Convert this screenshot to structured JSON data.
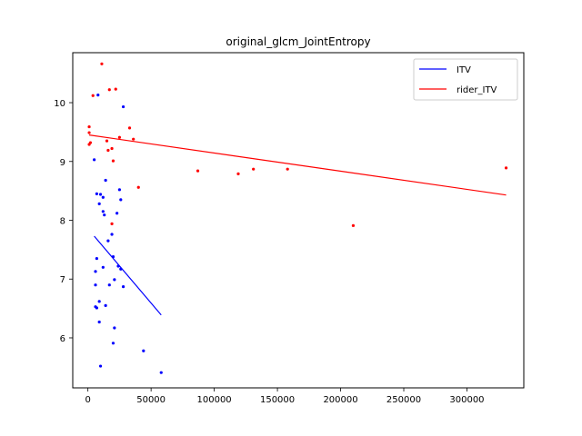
{
  "chart_data": {
    "type": "scatter",
    "title": "original_glcm_JointEntropy",
    "xlabel": "",
    "ylabel": "",
    "xlim": [
      -12000,
      345000
    ],
    "ylim": [
      5.15,
      10.85
    ],
    "xticks": [
      0,
      50000,
      100000,
      150000,
      200000,
      250000,
      300000
    ],
    "xtick_labels": [
      "0",
      "50000",
      "100000",
      "150000",
      "200000",
      "250000",
      "300000"
    ],
    "yticks": [
      6,
      7,
      8,
      9,
      10
    ],
    "ytick_labels": [
      "6",
      "7",
      "8",
      "9",
      "10"
    ],
    "grid": false,
    "legend": "top-right",
    "series": [
      {
        "name": "ITV",
        "color": "#0000ff",
        "points": [
          [
            8000,
            10.13
          ],
          [
            28000,
            9.93
          ],
          [
            5000,
            9.03
          ],
          [
            14000,
            8.68
          ],
          [
            7000,
            8.45
          ],
          [
            10000,
            8.44
          ],
          [
            12000,
            8.39
          ],
          [
            25000,
            8.52
          ],
          [
            26000,
            8.35
          ],
          [
            9000,
            8.28
          ],
          [
            12000,
            8.15
          ],
          [
            13000,
            8.09
          ],
          [
            23000,
            8.12
          ],
          [
            19000,
            7.76
          ],
          [
            16000,
            7.65
          ],
          [
            7000,
            7.35
          ],
          [
            20000,
            7.38
          ],
          [
            24000,
            7.22
          ],
          [
            12000,
            7.2
          ],
          [
            6000,
            7.13
          ],
          [
            26000,
            7.17
          ],
          [
            21000,
            6.99
          ],
          [
            6000,
            6.9
          ],
          [
            17000,
            6.9
          ],
          [
            28000,
            6.87
          ],
          [
            9000,
            6.62
          ],
          [
            6000,
            6.53
          ],
          [
            7000,
            6.51
          ],
          [
            14000,
            6.55
          ],
          [
            9000,
            6.27
          ],
          [
            21000,
            6.17
          ],
          [
            20000,
            5.91
          ],
          [
            44000,
            5.78
          ],
          [
            10000,
            5.52
          ],
          [
            58000,
            5.41
          ]
        ],
        "trend": [
          [
            5000,
            7.73
          ],
          [
            58000,
            6.39
          ]
        ]
      },
      {
        "name": "rider_ITV",
        "color": "#ff0000",
        "points": [
          [
            11000,
            10.66
          ],
          [
            17000,
            10.22
          ],
          [
            22000,
            10.23
          ],
          [
            4000,
            10.12
          ],
          [
            1000,
            9.59
          ],
          [
            1000,
            9.49
          ],
          [
            2000,
            9.32
          ],
          [
            1000,
            9.29
          ],
          [
            33000,
            9.57
          ],
          [
            15000,
            9.35
          ],
          [
            25000,
            9.41
          ],
          [
            36000,
            9.38
          ],
          [
            19000,
            9.22
          ],
          [
            16000,
            9.19
          ],
          [
            20000,
            9.01
          ],
          [
            40000,
            8.56
          ],
          [
            87000,
            8.84
          ],
          [
            119000,
            8.79
          ],
          [
            131000,
            8.87
          ],
          [
            158000,
            8.87
          ],
          [
            331000,
            8.89
          ],
          [
            19000,
            7.94
          ],
          [
            210000,
            7.91
          ]
        ],
        "trend": [
          [
            1000,
            9.45
          ],
          [
            331000,
            8.43
          ]
        ]
      }
    ]
  }
}
